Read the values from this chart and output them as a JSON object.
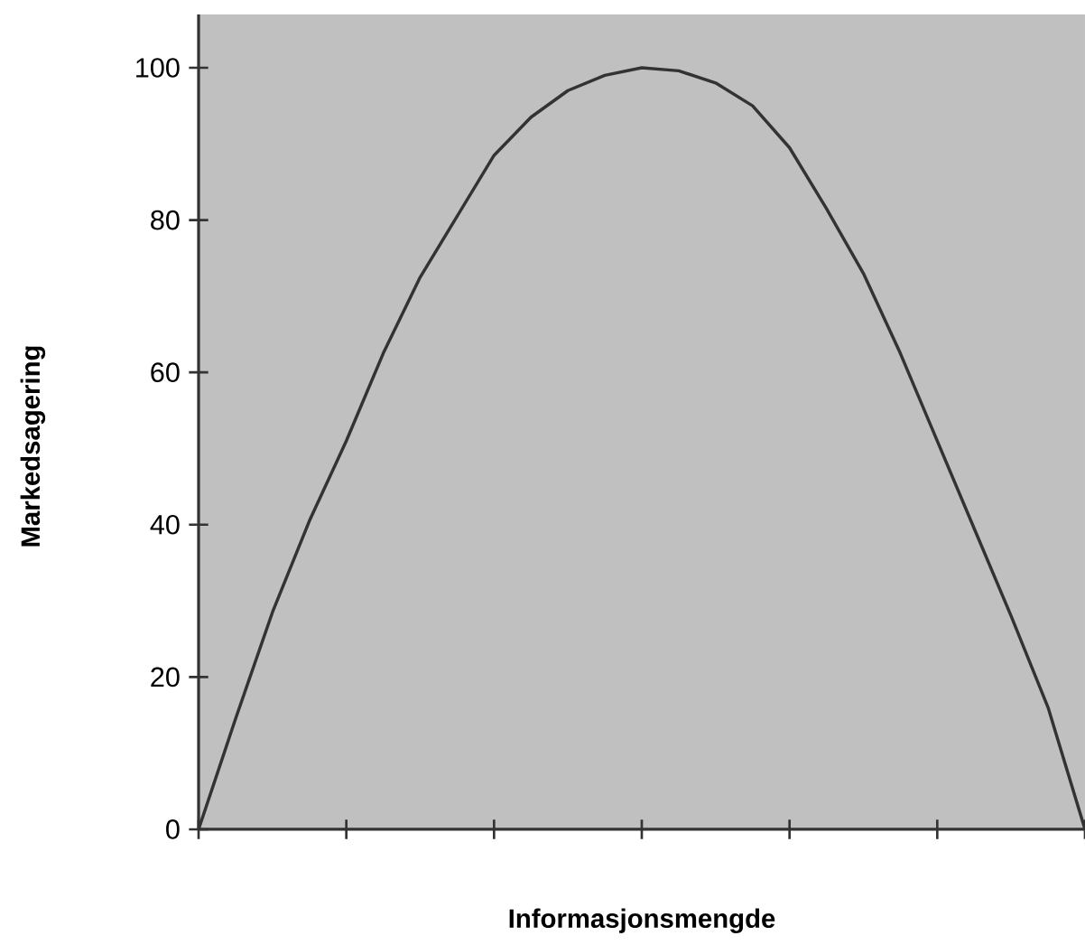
{
  "chart_data": {
    "type": "line",
    "xlabel": "Informasjonsmengde",
    "ylabel": "Markedsagering",
    "categories": [
      null,
      null,
      null,
      null,
      null,
      null,
      null,
      null,
      null,
      null,
      null,
      null,
      null,
      null,
      null,
      null,
      null,
      null,
      null,
      null,
      null,
      null,
      null,
      null,
      null
    ],
    "series": [
      {
        "color": "#333333",
        "values": [
          0,
          14.5,
          28.5,
          40.5,
          51,
          62.5,
          72.5,
          80.5,
          88.5,
          93.5,
          97,
          99,
          100,
          99.6,
          98,
          95,
          89.5,
          81.5,
          73,
          62.5,
          51,
          39.5,
          28,
          16,
          0
        ]
      }
    ],
    "ylim": [
      0,
      107
    ],
    "yticks": [
      0,
      20,
      40,
      60,
      80,
      100
    ],
    "tick_labels": "y",
    "marker": "none",
    "line_style": "solid"
  }
}
